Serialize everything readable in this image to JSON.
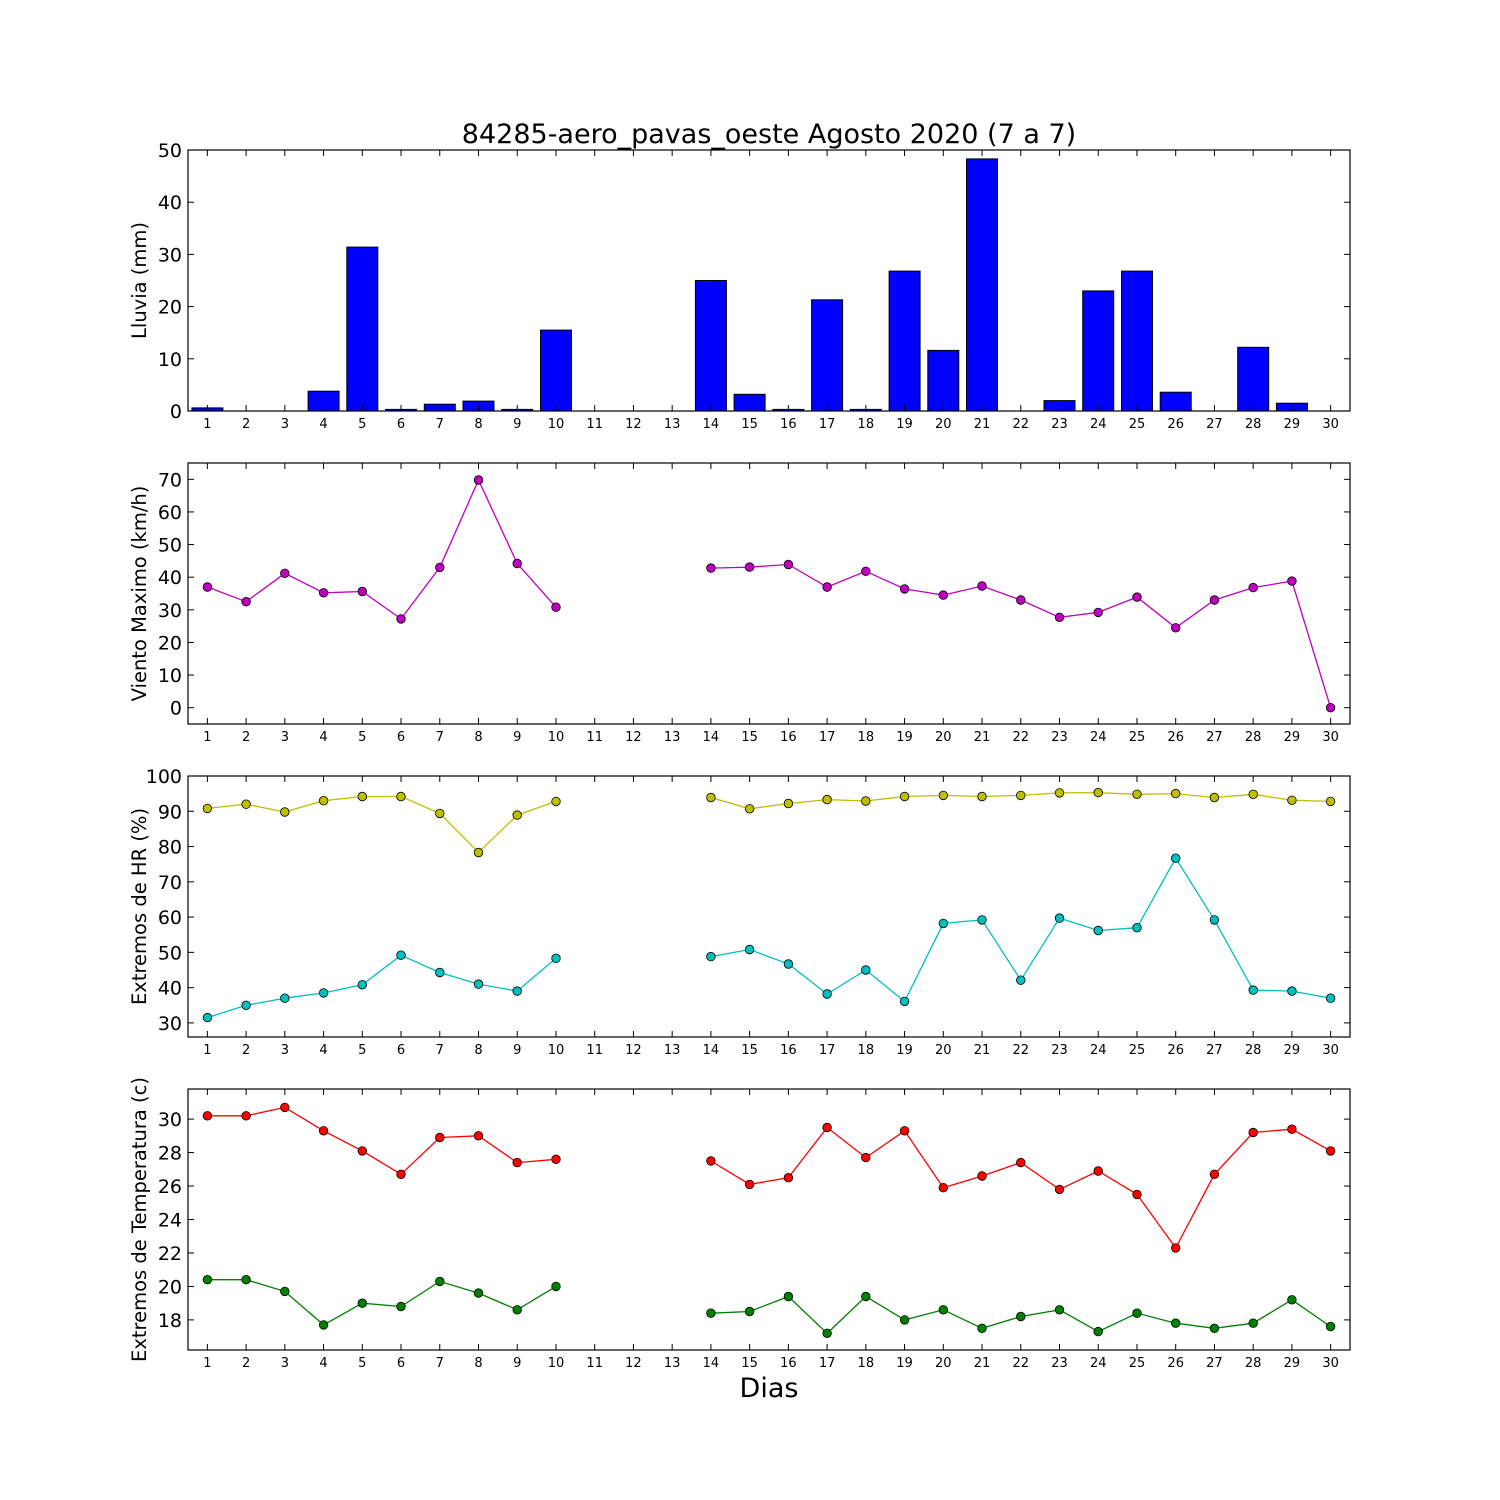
{
  "figure": {
    "title": "84285-aero_pavas_oeste Agosto 2020  (7 a 7)",
    "xlabel": "Dias"
  },
  "chart_data": [
    {
      "type": "bar",
      "ylabel": "Lluvia (mm)",
      "ylim": [
        0,
        50
      ],
      "yticks": [
        0,
        10,
        20,
        30,
        40,
        50
      ],
      "xlim": [
        0.5,
        30.5
      ],
      "categories": [
        "1",
        "2",
        "3",
        "4",
        "5",
        "6",
        "7",
        "8",
        "9",
        "10",
        "11",
        "12",
        "13",
        "14",
        "15",
        "16",
        "17",
        "18",
        "19",
        "20",
        "21",
        "22",
        "23",
        "24",
        "25",
        "26",
        "27",
        "28",
        "29",
        "30"
      ],
      "series": [
        {
          "values": [
            0.6,
            0,
            0,
            3.8,
            31.4,
            0.3,
            1.3,
            1.9,
            0.3,
            15.5,
            0,
            0,
            0,
            25.0,
            3.2,
            0.3,
            21.3,
            0.3,
            26.8,
            11.6,
            48.3,
            0,
            2.0,
            23.0,
            26.8,
            3.6,
            0,
            12.2,
            1.5,
            0
          ],
          "color": "#0000ff"
        }
      ]
    },
    {
      "type": "line",
      "ylabel": "Viento Maximo (km/h)",
      "ylim": [
        -5,
        75
      ],
      "yticks": [
        0,
        10,
        20,
        30,
        40,
        50,
        60,
        70
      ],
      "xlim": [
        0.5,
        30.5
      ],
      "categories": [
        "1",
        "2",
        "3",
        "4",
        "5",
        "6",
        "7",
        "8",
        "9",
        "10",
        "11",
        "12",
        "13",
        "14",
        "15",
        "16",
        "17",
        "18",
        "19",
        "20",
        "21",
        "22",
        "23",
        "24",
        "25",
        "26",
        "27",
        "28",
        "29",
        "30"
      ],
      "series": [
        {
          "values": [
            37,
            32.5,
            41.2,
            35.2,
            35.6,
            27.2,
            43,
            69.8,
            44.2,
            30.8,
            null,
            null,
            null,
            42.8,
            43.1,
            43.9,
            37,
            41.8,
            36.4,
            34.5,
            37.3,
            33,
            27.7,
            29.2,
            33.9,
            24.5,
            33,
            36.8,
            38.8,
            0
          ],
          "color": "#bf00bf"
        }
      ]
    },
    {
      "type": "line",
      "ylabel": "Extremos de HR (%)",
      "ylim": [
        26,
        100
      ],
      "yticks": [
        30,
        40,
        50,
        60,
        70,
        80,
        90,
        100
      ],
      "xlim": [
        0.5,
        30.5
      ],
      "categories": [
        "1",
        "2",
        "3",
        "4",
        "5",
        "6",
        "7",
        "8",
        "9",
        "10",
        "11",
        "12",
        "13",
        "14",
        "15",
        "16",
        "17",
        "18",
        "19",
        "20",
        "21",
        "22",
        "23",
        "24",
        "25",
        "26",
        "27",
        "28",
        "29",
        "30"
      ],
      "series": [
        {
          "values": [
            90.8,
            92,
            89.8,
            93,
            94.2,
            94.2,
            89.4,
            78.3,
            88.9,
            92.8,
            null,
            null,
            null,
            93.9,
            90.7,
            92.2,
            93.3,
            92.9,
            94.2,
            94.5,
            94.2,
            94.5,
            95.2,
            95.3,
            94.8,
            95,
            93.9,
            94.8,
            93.1,
            92.8
          ],
          "color": "#bfbf00"
        },
        {
          "values": [
            31.5,
            35,
            37,
            38.5,
            40.8,
            49.2,
            44.3,
            41,
            39,
            48.3,
            null,
            null,
            null,
            48.8,
            50.8,
            46.7,
            38.2,
            45,
            36.1,
            58.2,
            59.2,
            42.1,
            59.7,
            56.2,
            57,
            76.7,
            59.2,
            39.3,
            39,
            37
          ],
          "color": "#00bfbf"
        }
      ]
    },
    {
      "type": "line",
      "ylabel": "Extremos de Temperatura (c)",
      "ylim": [
        16.2,
        31.8
      ],
      "yticks": [
        18,
        20,
        22,
        24,
        26,
        28,
        30
      ],
      "xlim": [
        0.5,
        30.5
      ],
      "categories": [
        "1",
        "2",
        "3",
        "4",
        "5",
        "6",
        "7",
        "8",
        "9",
        "10",
        "11",
        "12",
        "13",
        "14",
        "15",
        "16",
        "17",
        "18",
        "19",
        "20",
        "21",
        "22",
        "23",
        "24",
        "25",
        "26",
        "27",
        "28",
        "29",
        "30"
      ],
      "series": [
        {
          "values": [
            30.2,
            30.2,
            30.7,
            29.3,
            28.1,
            26.7,
            28.9,
            29,
            27.4,
            27.6,
            null,
            null,
            null,
            27.5,
            26.1,
            26.5,
            29.5,
            27.7,
            29.3,
            25.9,
            26.6,
            27.4,
            25.8,
            26.9,
            25.5,
            22.3,
            26.7,
            29.2,
            29.4,
            28.1
          ],
          "color": "#ff0000"
        },
        {
          "values": [
            20.4,
            20.4,
            19.7,
            17.7,
            19,
            18.8,
            20.3,
            19.6,
            18.6,
            20,
            null,
            null,
            null,
            18.4,
            18.5,
            19.4,
            17.2,
            19.4,
            18,
            18.6,
            17.5,
            18.2,
            18.6,
            17.3,
            18.4,
            17.8,
            17.5,
            17.8,
            19.2,
            17.6
          ],
          "color": "#008000"
        }
      ]
    }
  ]
}
